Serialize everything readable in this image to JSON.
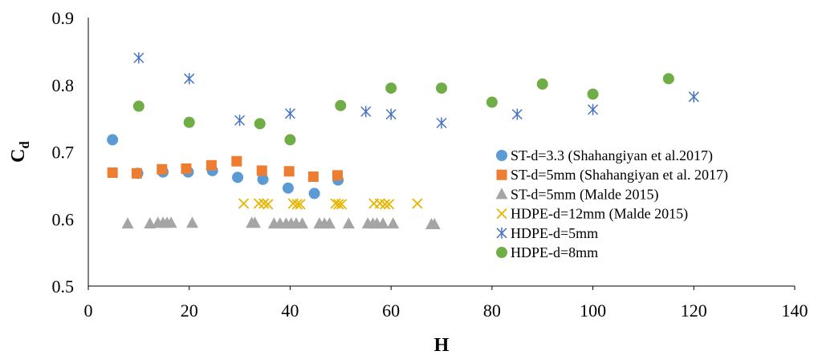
{
  "chart_data": {
    "type": "scatter",
    "title": "",
    "xlabel": "H",
    "ylabel_main": "C",
    "ylabel_sub": "d",
    "xlim": [
      0,
      140
    ],
    "ylim": [
      0.5,
      0.9
    ],
    "xticks": [
      0,
      20,
      40,
      60,
      80,
      100,
      120,
      140
    ],
    "yticks": [
      0.5,
      0.6,
      0.7,
      0.8,
      0.9
    ],
    "xtick_labels": [
      "0",
      "20",
      "40",
      "60",
      "80",
      "100",
      "120",
      "140"
    ],
    "ytick_labels": [
      "0.5",
      "0.6",
      "0.7",
      "0.8",
      "0.9"
    ],
    "grid": false,
    "legend_position": "right",
    "series": [
      {
        "name": "ST-d=3.3 (Shahangiyan et al.2017)",
        "marker": "circle",
        "color": "#5B9BD5",
        "points": [
          [
            4.8,
            0.718
          ],
          [
            9.8,
            0.668
          ],
          [
            14.8,
            0.67
          ],
          [
            19.8,
            0.67
          ],
          [
            24.6,
            0.672
          ],
          [
            29.6,
            0.662
          ],
          [
            34.6,
            0.659
          ],
          [
            39.6,
            0.646
          ],
          [
            44.8,
            0.638
          ],
          [
            49.5,
            0.658
          ]
        ]
      },
      {
        "name": "ST-d=5mm (Shahangiyan et al. 2017)",
        "marker": "square",
        "color": "#ED7D31",
        "points": [
          [
            4.8,
            0.669
          ],
          [
            9.6,
            0.668
          ],
          [
            14.6,
            0.674
          ],
          [
            19.4,
            0.675
          ],
          [
            24.4,
            0.68
          ],
          [
            29.4,
            0.686
          ],
          [
            34.4,
            0.672
          ],
          [
            39.8,
            0.671
          ],
          [
            44.6,
            0.663
          ],
          [
            49.4,
            0.665
          ]
        ]
      },
      {
        "name": "ST-d=5mm (Malde 2015)",
        "marker": "triangle",
        "color": "#A5A5A5",
        "points": [
          [
            7.8,
            0.593
          ],
          [
            12.2,
            0.593
          ],
          [
            13.8,
            0.594
          ],
          [
            14.8,
            0.594
          ],
          [
            15.6,
            0.594
          ],
          [
            16.4,
            0.594
          ],
          [
            20.6,
            0.594
          ],
          [
            32.4,
            0.594
          ],
          [
            33.0,
            0.594
          ],
          [
            36.8,
            0.593
          ],
          [
            38.0,
            0.593
          ],
          [
            39.2,
            0.593
          ],
          [
            40.2,
            0.593
          ],
          [
            41.2,
            0.593
          ],
          [
            42.4,
            0.593
          ],
          [
            45.8,
            0.593
          ],
          [
            46.8,
            0.593
          ],
          [
            47.8,
            0.593
          ],
          [
            51.6,
            0.593
          ],
          [
            55.4,
            0.593
          ],
          [
            56.4,
            0.593
          ],
          [
            57.2,
            0.593
          ],
          [
            58.4,
            0.593
          ],
          [
            60.4,
            0.593
          ],
          [
            68.0,
            0.592
          ],
          [
            68.6,
            0.592
          ]
        ]
      },
      {
        "name": "HDPE-d=12mm (Malde 2015)",
        "marker": "x",
        "color": "#E8B400",
        "points": [
          [
            30.8,
            0.623
          ],
          [
            33.8,
            0.623
          ],
          [
            34.8,
            0.623
          ],
          [
            35.6,
            0.622
          ],
          [
            40.6,
            0.623
          ],
          [
            41.4,
            0.622
          ],
          [
            42.0,
            0.622
          ],
          [
            49.0,
            0.623
          ],
          [
            49.6,
            0.622
          ],
          [
            50.2,
            0.622
          ],
          [
            56.6,
            0.623
          ],
          [
            57.8,
            0.623
          ],
          [
            58.8,
            0.622
          ],
          [
            59.6,
            0.622
          ],
          [
            65.2,
            0.623
          ]
        ]
      },
      {
        "name": "HDPE-d=5mm",
        "marker": "star",
        "color": "#4472C4",
        "points": [
          [
            10,
            0.84
          ],
          [
            20,
            0.809
          ],
          [
            30,
            0.747
          ],
          [
            40,
            0.757
          ],
          [
            55,
            0.76
          ],
          [
            60,
            0.756
          ],
          [
            70,
            0.743
          ],
          [
            85,
            0.756
          ],
          [
            100,
            0.763
          ],
          [
            120,
            0.782
          ]
        ]
      },
      {
        "name": "HDPE-d=8mm",
        "marker": "circle",
        "color": "#70AD47",
        "points": [
          [
            10,
            0.768
          ],
          [
            20,
            0.744
          ],
          [
            34,
            0.742
          ],
          [
            40,
            0.718
          ],
          [
            50,
            0.769
          ],
          [
            60,
            0.795
          ],
          [
            70,
            0.795
          ],
          [
            80,
            0.774
          ],
          [
            90,
            0.801
          ],
          [
            100,
            0.786
          ],
          [
            115,
            0.809
          ]
        ]
      }
    ]
  }
}
